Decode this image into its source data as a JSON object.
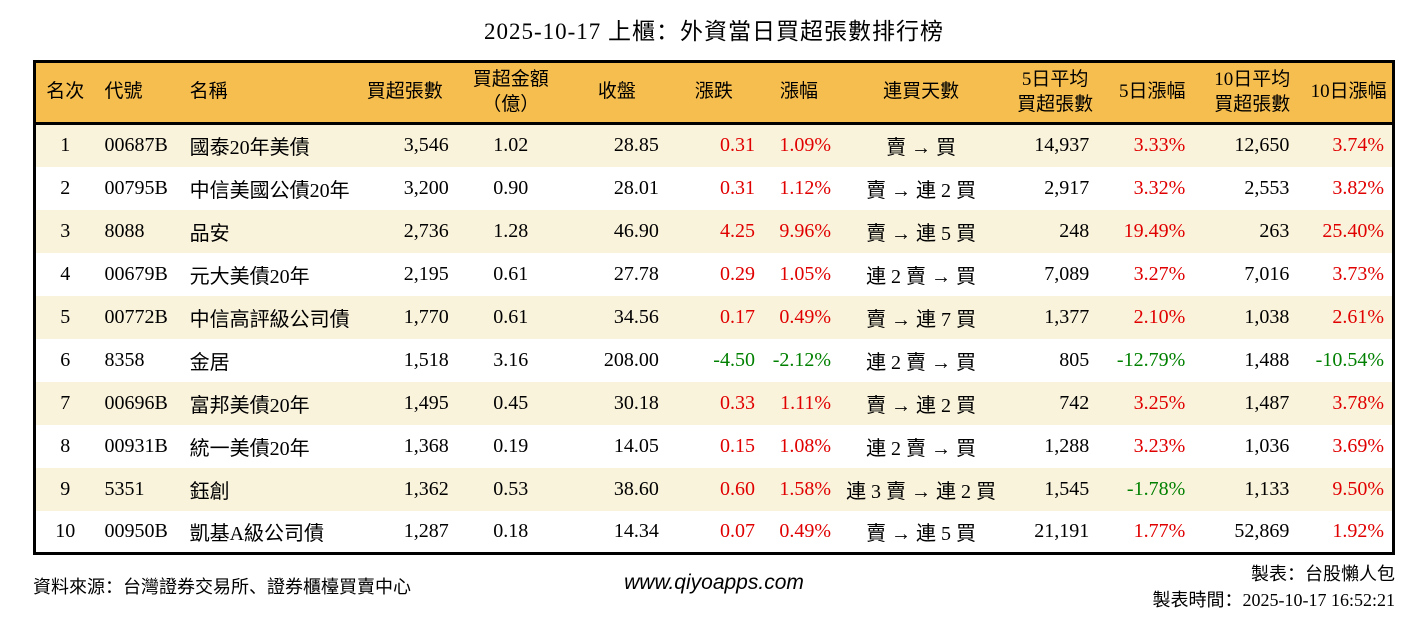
{
  "chart_data": {
    "type": "table",
    "title": "2025-10-17 上櫃：外資當日買超張數排行榜",
    "columns": [
      "名次",
      "代號",
      "名稱",
      "買超張數",
      "買超金額（億）",
      "收盤",
      "漲跌",
      "漲幅",
      "連買天數",
      "5日平均買超張數",
      "5日漲幅",
      "10日平均買超張數",
      "10日漲幅"
    ],
    "rows": [
      {
        "rank": "1",
        "code": "00687B",
        "name": "國泰20年美債",
        "volume": "3,546",
        "amount": "1.02",
        "close": "28.85",
        "change": "0.31",
        "change_pct": "1.09%",
        "streak": "賣 → 買",
        "avg5": "14,937",
        "pct5": "3.33%",
        "avg10": "12,650",
        "pct10": "3.74%",
        "change_dir": "up",
        "pct5_dir": "up",
        "pct10_dir": "up"
      },
      {
        "rank": "2",
        "code": "00795B",
        "name": "中信美國公債20年",
        "volume": "3,200",
        "amount": "0.90",
        "close": "28.01",
        "change": "0.31",
        "change_pct": "1.12%",
        "streak": "賣 → 連 2 買",
        "avg5": "2,917",
        "pct5": "3.32%",
        "avg10": "2,553",
        "pct10": "3.82%",
        "change_dir": "up",
        "pct5_dir": "up",
        "pct10_dir": "up"
      },
      {
        "rank": "3",
        "code": "8088",
        "name": "品安",
        "volume": "2,736",
        "amount": "1.28",
        "close": "46.90",
        "change": "4.25",
        "change_pct": "9.96%",
        "streak": "賣 → 連 5 買",
        "avg5": "248",
        "pct5": "19.49%",
        "avg10": "263",
        "pct10": "25.40%",
        "change_dir": "up",
        "pct5_dir": "up",
        "pct10_dir": "up"
      },
      {
        "rank": "4",
        "code": "00679B",
        "name": "元大美債20年",
        "volume": "2,195",
        "amount": "0.61",
        "close": "27.78",
        "change": "0.29",
        "change_pct": "1.05%",
        "streak": "連 2 賣 → 買",
        "avg5": "7,089",
        "pct5": "3.27%",
        "avg10": "7,016",
        "pct10": "3.73%",
        "change_dir": "up",
        "pct5_dir": "up",
        "pct10_dir": "up"
      },
      {
        "rank": "5",
        "code": "00772B",
        "name": "中信高評級公司債",
        "volume": "1,770",
        "amount": "0.61",
        "close": "34.56",
        "change": "0.17",
        "change_pct": "0.49%",
        "streak": "賣 → 連 7 買",
        "avg5": "1,377",
        "pct5": "2.10%",
        "avg10": "1,038",
        "pct10": "2.61%",
        "change_dir": "up",
        "pct5_dir": "up",
        "pct10_dir": "up"
      },
      {
        "rank": "6",
        "code": "8358",
        "name": "金居",
        "volume": "1,518",
        "amount": "3.16",
        "close": "208.00",
        "change": "-4.50",
        "change_pct": "-2.12%",
        "streak": "連 2 賣 → 買",
        "avg5": "805",
        "pct5": "-12.79%",
        "avg10": "1,488",
        "pct10": "-10.54%",
        "change_dir": "down",
        "pct5_dir": "down",
        "pct10_dir": "down"
      },
      {
        "rank": "7",
        "code": "00696B",
        "name": "富邦美債20年",
        "volume": "1,495",
        "amount": "0.45",
        "close": "30.18",
        "change": "0.33",
        "change_pct": "1.11%",
        "streak": "賣 → 連 2 買",
        "avg5": "742",
        "pct5": "3.25%",
        "avg10": "1,487",
        "pct10": "3.78%",
        "change_dir": "up",
        "pct5_dir": "up",
        "pct10_dir": "up"
      },
      {
        "rank": "8",
        "code": "00931B",
        "name": "統一美債20年",
        "volume": "1,368",
        "amount": "0.19",
        "close": "14.05",
        "change": "0.15",
        "change_pct": "1.08%",
        "streak": "連 2 賣 → 買",
        "avg5": "1,288",
        "pct5": "3.23%",
        "avg10": "1,036",
        "pct10": "3.69%",
        "change_dir": "up",
        "pct5_dir": "up",
        "pct10_dir": "up"
      },
      {
        "rank": "9",
        "code": "5351",
        "name": "鈺創",
        "volume": "1,362",
        "amount": "0.53",
        "close": "38.60",
        "change": "0.60",
        "change_pct": "1.58%",
        "streak": "連 3 賣 → 連 2 買",
        "avg5": "1,545",
        "pct5": "-1.78%",
        "avg10": "1,133",
        "pct10": "9.50%",
        "change_dir": "up",
        "pct5_dir": "down",
        "pct10_dir": "up"
      },
      {
        "rank": "10",
        "code": "00950B",
        "name": "凱基A級公司債",
        "volume": "1,287",
        "amount": "0.18",
        "close": "14.34",
        "change": "0.07",
        "change_pct": "0.49%",
        "streak": "賣 → 連 5 買",
        "avg5": "21,191",
        "pct5": "1.77%",
        "avg10": "52,869",
        "pct10": "1.92%",
        "change_dir": "up",
        "pct5_dir": "up",
        "pct10_dir": "up"
      }
    ]
  },
  "table": {
    "headers": [
      {
        "line1": "名次"
      },
      {
        "line1": "代號"
      },
      {
        "line1": "名稱"
      },
      {
        "line1": "買超張數"
      },
      {
        "line1": "買超金額",
        "line2": "（億）"
      },
      {
        "line1": "收盤"
      },
      {
        "line1": "漲跌"
      },
      {
        "line1": "漲幅"
      },
      {
        "line1": "連買天數"
      },
      {
        "line1": "5日平均",
        "line2": "買超張數"
      },
      {
        "line1": "5日漲幅"
      },
      {
        "line1": "10日平均",
        "line2": "買超張數"
      },
      {
        "line1": "10日漲幅"
      }
    ]
  },
  "footer": {
    "source": "資料來源：台灣證券交易所、證券櫃檯買賣中心",
    "website": "www.qiyoapps.com",
    "author": "製表：台股懶人包",
    "generated": "製表時間：2025-10-17 16:52:21"
  },
  "colors": {
    "up": "#e00000",
    "down": "#008000",
    "header_bg": "#f6be4f",
    "row_alt_bg": "#faf3dc",
    "border": "#000000"
  }
}
